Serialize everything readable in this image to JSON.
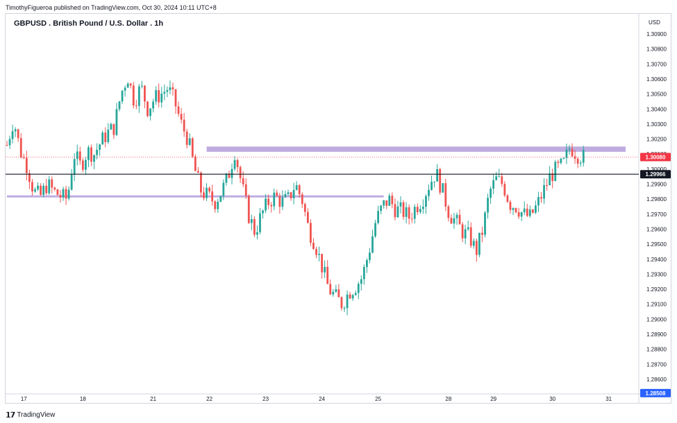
{
  "header": {
    "publisher": "TimothyFigueroa published on TradingView.com, Oct 30, 2024 10:11 UTC+8",
    "title": "GBPUSD . British Pound / U.S. Dollar . 1h",
    "currency": "USD"
  },
  "footer": {
    "logo_text": "𝟭𝟳",
    "brand": "TradingView"
  },
  "colors": {
    "up": "#26a69a",
    "down": "#ef5350",
    "zone": "#b39ddb",
    "last_price_badge": "#f23645",
    "line_badge": "#131722",
    "low_badge": "#2962ff"
  },
  "chart_data": {
    "type": "candlestick",
    "ylim": [
      1.285,
      1.31
    ],
    "y_ticks": [
      "1.30900",
      "1.30800",
      "1.30700",
      "1.30600",
      "1.30500",
      "1.30400",
      "1.30300",
      "1.30200",
      "1.30100",
      "1.30000",
      "1.29900",
      "1.29800",
      "1.29700",
      "1.29600",
      "1.29500",
      "1.29400",
      "1.29300",
      "1.29200",
      "1.29100",
      "1.29000",
      "1.28900",
      "1.28800",
      "1.28700",
      "1.28600"
    ],
    "x_ticks": [
      {
        "label": "17",
        "index": 6
      },
      {
        "label": "18",
        "index": 27
      },
      {
        "label": "21",
        "index": 52
      },
      {
        "label": "22",
        "index": 72
      },
      {
        "label": "23",
        "index": 92
      },
      {
        "label": "24",
        "index": 112
      },
      {
        "label": "25",
        "index": 132
      },
      {
        "label": "28",
        "index": 157
      },
      {
        "label": "29",
        "index": 173
      },
      {
        "label": "30",
        "index": 194
      },
      {
        "label": "31",
        "index": 214
      }
    ],
    "badges": [
      {
        "label": "1.30080",
        "value": 1.3008,
        "kind": "last"
      },
      {
        "label": "1.29966",
        "value": 1.29966,
        "kind": "line"
      },
      {
        "label": "1.28508",
        "value": 1.28508,
        "kind": "low"
      }
    ],
    "horizontal_line": 1.29966,
    "last_price": 1.3008,
    "zones": [
      {
        "from_index": 71,
        "to_index": 220,
        "low": 1.30115,
        "high": 1.3015
      },
      {
        "from_index": 0,
        "to_index": 134,
        "low": 1.29815,
        "high": 1.29825
      }
    ],
    "close_path": [
      1.3016,
      1.3033,
      1.3012,
      1.3002,
      1.2985,
      1.2982,
      1.299,
      1.2985,
      1.2982,
      1.298,
      1.301,
      1.3002,
      1.3012,
      1.301,
      1.3018,
      1.3024,
      1.3028,
      1.305,
      1.3062,
      1.3045,
      1.3055,
      1.304,
      1.3047,
      1.305,
      1.3054,
      1.3045,
      1.303,
      1.302,
      1.3,
      1.2985,
      1.2982,
      1.2978,
      1.2985,
      1.2995,
      1.3012,
      1.299,
      1.297,
      1.2958,
      1.297,
      1.2978,
      1.2982,
      1.2978,
      1.298,
      1.299,
      1.298,
      1.296,
      1.295,
      1.2935,
      1.292,
      1.2915,
      1.291,
      1.2918,
      1.2922,
      1.2928,
      1.2945,
      1.2965,
      1.2975,
      1.298,
      1.2973,
      1.2972,
      1.2968,
      1.2975,
      1.298,
      1.299,
      1.2998,
      1.2985,
      1.297,
      1.2965,
      1.2958,
      1.2955,
      1.2945,
      1.296,
      1.2985,
      1.2993,
      1.299,
      1.2977,
      1.2975,
      1.297,
      1.2968,
      1.2975,
      1.2985,
      1.2995,
      1.3,
      1.3003,
      1.3015,
      1.301,
      1.3008
    ]
  }
}
